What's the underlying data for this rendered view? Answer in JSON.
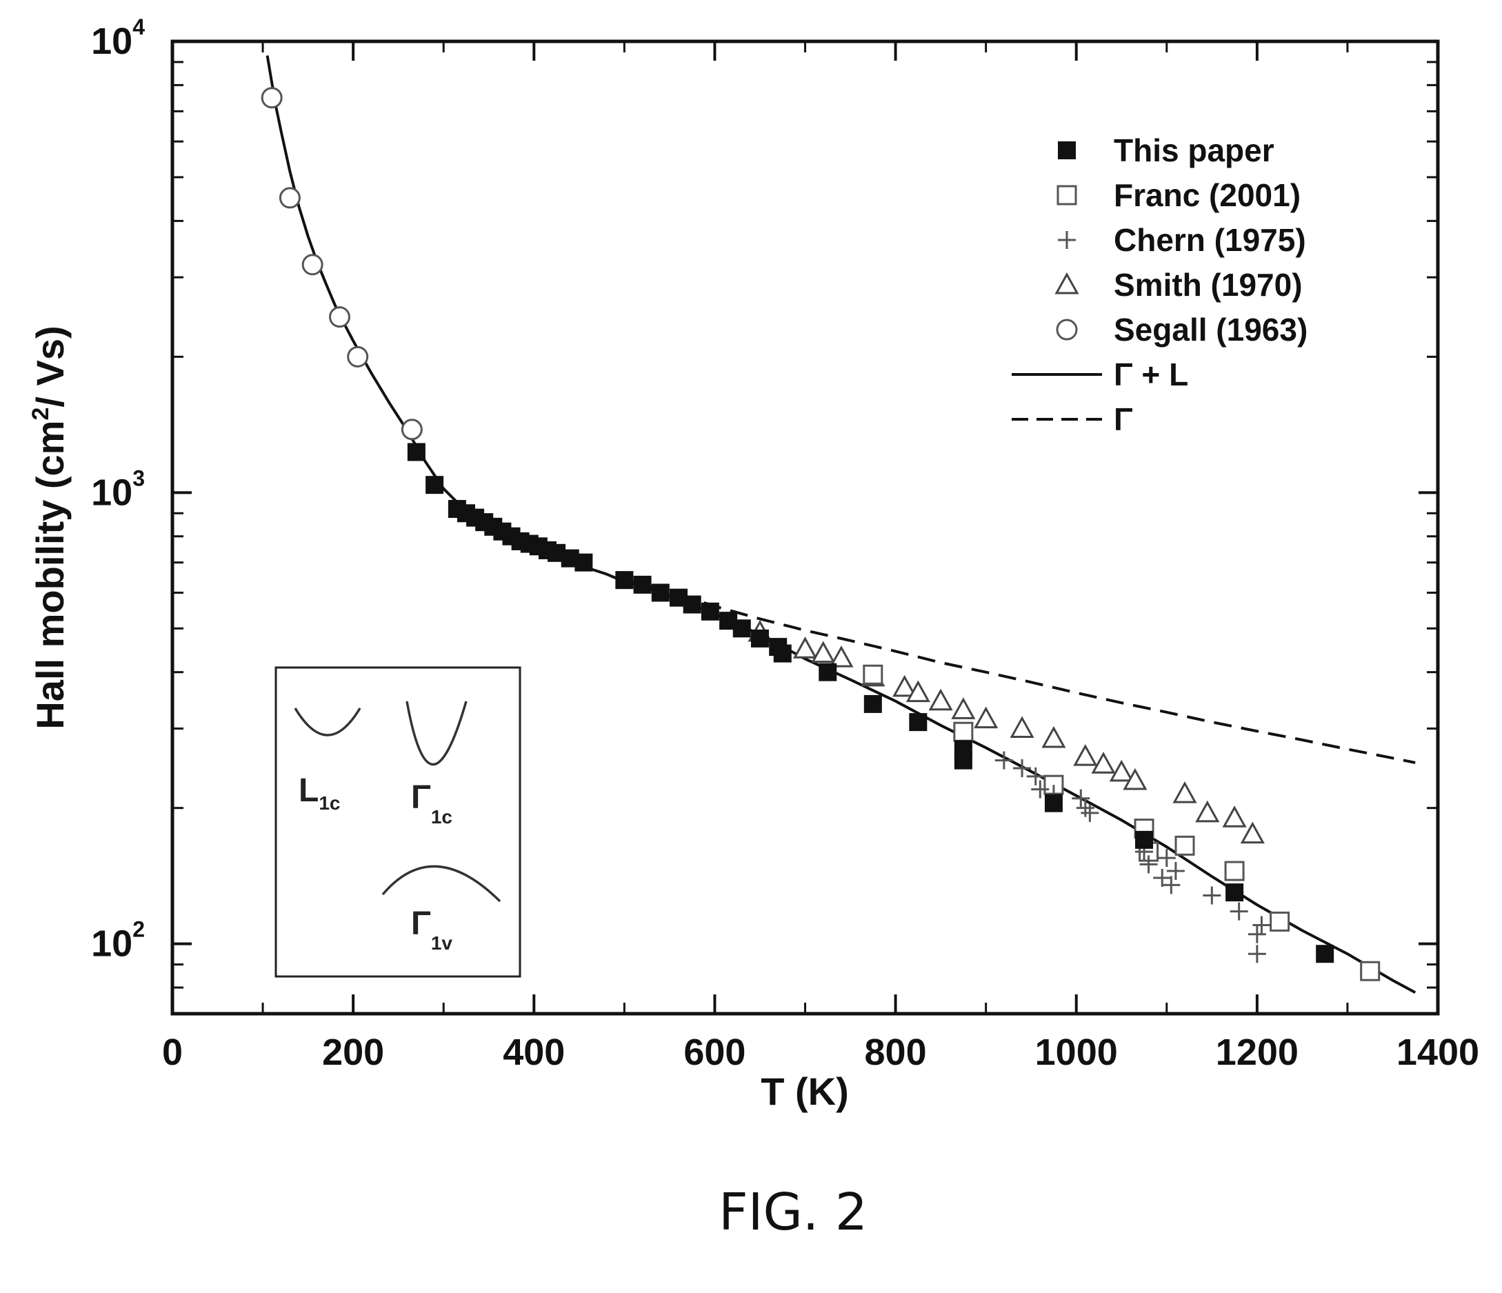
{
  "figure_caption": "FIG. 2",
  "chart_data": {
    "type": "scatter",
    "xlabel": "T (K)",
    "ylabel_parts": [
      "Hall mobility (cm",
      "2",
      "/ Vs)"
    ],
    "xlim": [
      0,
      1400
    ],
    "ylim": [
      70,
      10000
    ],
    "y_scale": "log",
    "x_ticks": [
      0,
      200,
      400,
      600,
      800,
      1000,
      1200,
      1400
    ],
    "x_tick_labels": [
      "0",
      "200",
      "400",
      "600",
      "800",
      "1000",
      "1200",
      "1400"
    ],
    "y_ticks": [
      {
        "value": 10000,
        "base": "10",
        "exp": "4"
      },
      {
        "value": 1000,
        "base": "10",
        "exp": "3"
      },
      {
        "value": 100,
        "base": "10",
        "exp": "2"
      }
    ],
    "grid": false,
    "legend_position": "top-right",
    "series": [
      {
        "name": "This paper",
        "marker": "filled-square",
        "points": [
          [
            270,
            1230
          ],
          [
            290,
            1040
          ],
          [
            315,
            920
          ],
          [
            325,
            900
          ],
          [
            335,
            880
          ],
          [
            345,
            860
          ],
          [
            355,
            840
          ],
          [
            365,
            820
          ],
          [
            375,
            800
          ],
          [
            385,
            780
          ],
          [
            395,
            770
          ],
          [
            405,
            760
          ],
          [
            415,
            745
          ],
          [
            425,
            735
          ],
          [
            440,
            715
          ],
          [
            455,
            700
          ],
          [
            500,
            640
          ],
          [
            520,
            625
          ],
          [
            540,
            600
          ],
          [
            560,
            585
          ],
          [
            575,
            565
          ],
          [
            595,
            545
          ],
          [
            615,
            520
          ],
          [
            630,
            500
          ],
          [
            650,
            475
          ],
          [
            670,
            455
          ],
          [
            675,
            440
          ],
          [
            725,
            400
          ],
          [
            775,
            340
          ],
          [
            825,
            310
          ],
          [
            875,
            270
          ],
          [
            875,
            255
          ],
          [
            975,
            205
          ],
          [
            1075,
            170
          ],
          [
            1175,
            130
          ],
          [
            1275,
            95
          ]
        ]
      },
      {
        "name": "Franc (2001)",
        "marker": "open-square",
        "points": [
          [
            775,
            395
          ],
          [
            875,
            295
          ],
          [
            975,
            225
          ],
          [
            1075,
            180
          ],
          [
            1080,
            160
          ],
          [
            1120,
            165
          ],
          [
            1175,
            145
          ],
          [
            1225,
            112
          ],
          [
            1325,
            87
          ]
        ]
      },
      {
        "name": "Chern (1975)",
        "marker": "plus",
        "points": [
          [
            920,
            255
          ],
          [
            940,
            245
          ],
          [
            955,
            235
          ],
          [
            960,
            220
          ],
          [
            975,
            215
          ],
          [
            1005,
            210
          ],
          [
            1010,
            200
          ],
          [
            1015,
            195
          ],
          [
            1075,
            160
          ],
          [
            1080,
            150
          ],
          [
            1095,
            140
          ],
          [
            1100,
            155
          ],
          [
            1105,
            135
          ],
          [
            1110,
            145
          ],
          [
            1150,
            128
          ],
          [
            1180,
            118
          ],
          [
            1200,
            105
          ],
          [
            1200,
            95
          ],
          [
            1205,
            110
          ]
        ]
      },
      {
        "name": "Smith (1970)",
        "marker": "open-triangle",
        "points": [
          [
            650,
            490
          ],
          [
            700,
            450
          ],
          [
            720,
            440
          ],
          [
            740,
            430
          ],
          [
            775,
            390
          ],
          [
            810,
            370
          ],
          [
            825,
            360
          ],
          [
            850,
            345
          ],
          [
            875,
            330
          ],
          [
            900,
            315
          ],
          [
            940,
            300
          ],
          [
            975,
            285
          ],
          [
            1010,
            260
          ],
          [
            1030,
            250
          ],
          [
            1050,
            240
          ],
          [
            1065,
            230
          ],
          [
            1120,
            215
          ],
          [
            1145,
            195
          ],
          [
            1175,
            190
          ],
          [
            1195,
            175
          ]
        ]
      },
      {
        "name": "Segall (1963)",
        "marker": "open-circle",
        "points": [
          [
            110,
            7500
          ],
          [
            130,
            4500
          ],
          [
            155,
            3200
          ],
          [
            185,
            2450
          ],
          [
            205,
            2000
          ],
          [
            265,
            1380
          ]
        ]
      },
      {
        "name": "Γ + L",
        "marker": "solid-line",
        "points": [
          [
            105,
            9300
          ],
          [
            110,
            8100
          ],
          [
            115,
            7100
          ],
          [
            120,
            6350
          ],
          [
            130,
            5150
          ],
          [
            140,
            4300
          ],
          [
            150,
            3700
          ],
          [
            160,
            3250
          ],
          [
            170,
            2900
          ],
          [
            180,
            2600
          ],
          [
            190,
            2370
          ],
          [
            200,
            2170
          ],
          [
            220,
            1840
          ],
          [
            240,
            1580
          ],
          [
            260,
            1370
          ],
          [
            280,
            1170
          ],
          [
            300,
            1020
          ],
          [
            320,
            930
          ],
          [
            340,
            870
          ],
          [
            360,
            820
          ],
          [
            380,
            780
          ],
          [
            400,
            750
          ],
          [
            420,
            725
          ],
          [
            440,
            705
          ],
          [
            460,
            680
          ],
          [
            480,
            660
          ],
          [
            500,
            635
          ],
          [
            520,
            620
          ],
          [
            540,
            600
          ],
          [
            560,
            578
          ],
          [
            580,
            560
          ],
          [
            600,
            538
          ],
          [
            620,
            518
          ],
          [
            640,
            495
          ],
          [
            660,
            470
          ],
          [
            680,
            450
          ],
          [
            700,
            428
          ],
          [
            750,
            385
          ],
          [
            800,
            345
          ],
          [
            850,
            305
          ],
          [
            900,
            272
          ],
          [
            950,
            241
          ],
          [
            1000,
            213
          ],
          [
            1050,
            188
          ],
          [
            1100,
            164
          ],
          [
            1150,
            141
          ],
          [
            1200,
            122
          ],
          [
            1250,
            107
          ],
          [
            1300,
            95
          ],
          [
            1350,
            83
          ],
          [
            1375,
            78
          ]
        ]
      },
      {
        "name": "Γ",
        "marker": "dashed-line",
        "points": [
          [
            500,
            640
          ],
          [
            550,
            605
          ],
          [
            600,
            560
          ],
          [
            650,
            525
          ],
          [
            700,
            495
          ],
          [
            750,
            470
          ],
          [
            800,
            445
          ],
          [
            850,
            420
          ],
          [
            900,
            400
          ],
          [
            950,
            380
          ],
          [
            1000,
            360
          ],
          [
            1050,
            342
          ],
          [
            1100,
            326
          ],
          [
            1150,
            310
          ],
          [
            1200,
            296
          ],
          [
            1250,
            283
          ],
          [
            1300,
            270
          ],
          [
            1350,
            258
          ],
          [
            1375,
            252
          ]
        ]
      }
    ],
    "inset": {
      "labels": [
        {
          "base": "L",
          "sub": "1c"
        },
        {
          "base": "Γ",
          "sub": "1c"
        },
        {
          "base": "Γ",
          "sub": "1v"
        }
      ]
    }
  }
}
